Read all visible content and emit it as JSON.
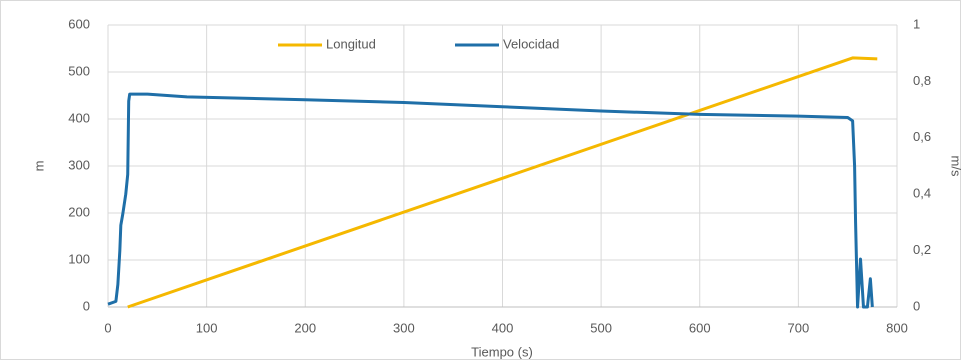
{
  "chart_data": {
    "type": "line",
    "xlabel": "Tiempo (s)",
    "ylabel": "m",
    "y2label": "m/s",
    "xlim": [
      0,
      800
    ],
    "xticks": [
      0,
      100,
      200,
      300,
      400,
      500,
      600,
      700,
      800
    ],
    "ylim": [
      0,
      600
    ],
    "yticks": [
      0,
      100,
      200,
      300,
      400,
      500,
      600
    ],
    "y2lim": [
      0,
      1
    ],
    "y2ticks": [
      0,
      {
        "value": 0.2,
        "label": "0,2"
      },
      {
        "value": 0.4,
        "label": "0,4"
      },
      {
        "value": 0.6,
        "label": "0,6"
      },
      {
        "value": 0.8,
        "label": "0,8"
      },
      1
    ],
    "grid": true,
    "legend": "top",
    "series": [
      {
        "name": "Longitud",
        "color": "#f5b800",
        "x": [
          20,
          755,
          780
        ],
        "values": [
          0,
          530,
          528
        ]
      },
      {
        "name": "Velocidad",
        "color": "#1f6fa8",
        "axis": "y2",
        "x": [
          0,
          8,
          10,
          12,
          13,
          15,
          18,
          20,
          21,
          22,
          40,
          80,
          200,
          300,
          400,
          500,
          600,
          700,
          750,
          755,
          757,
          758,
          760,
          763,
          766,
          770,
          773,
          775
        ],
        "values": [
          0.01,
          0.02,
          0.08,
          0.2,
          0.29,
          0.33,
          0.4,
          0.47,
          0.73,
          0.755,
          0.755,
          0.745,
          0.735,
          0.725,
          0.71,
          0.695,
          0.683,
          0.677,
          0.672,
          0.66,
          0.5,
          0.3,
          0,
          0.17,
          0,
          0,
          0.1,
          0
        ]
      }
    ]
  }
}
